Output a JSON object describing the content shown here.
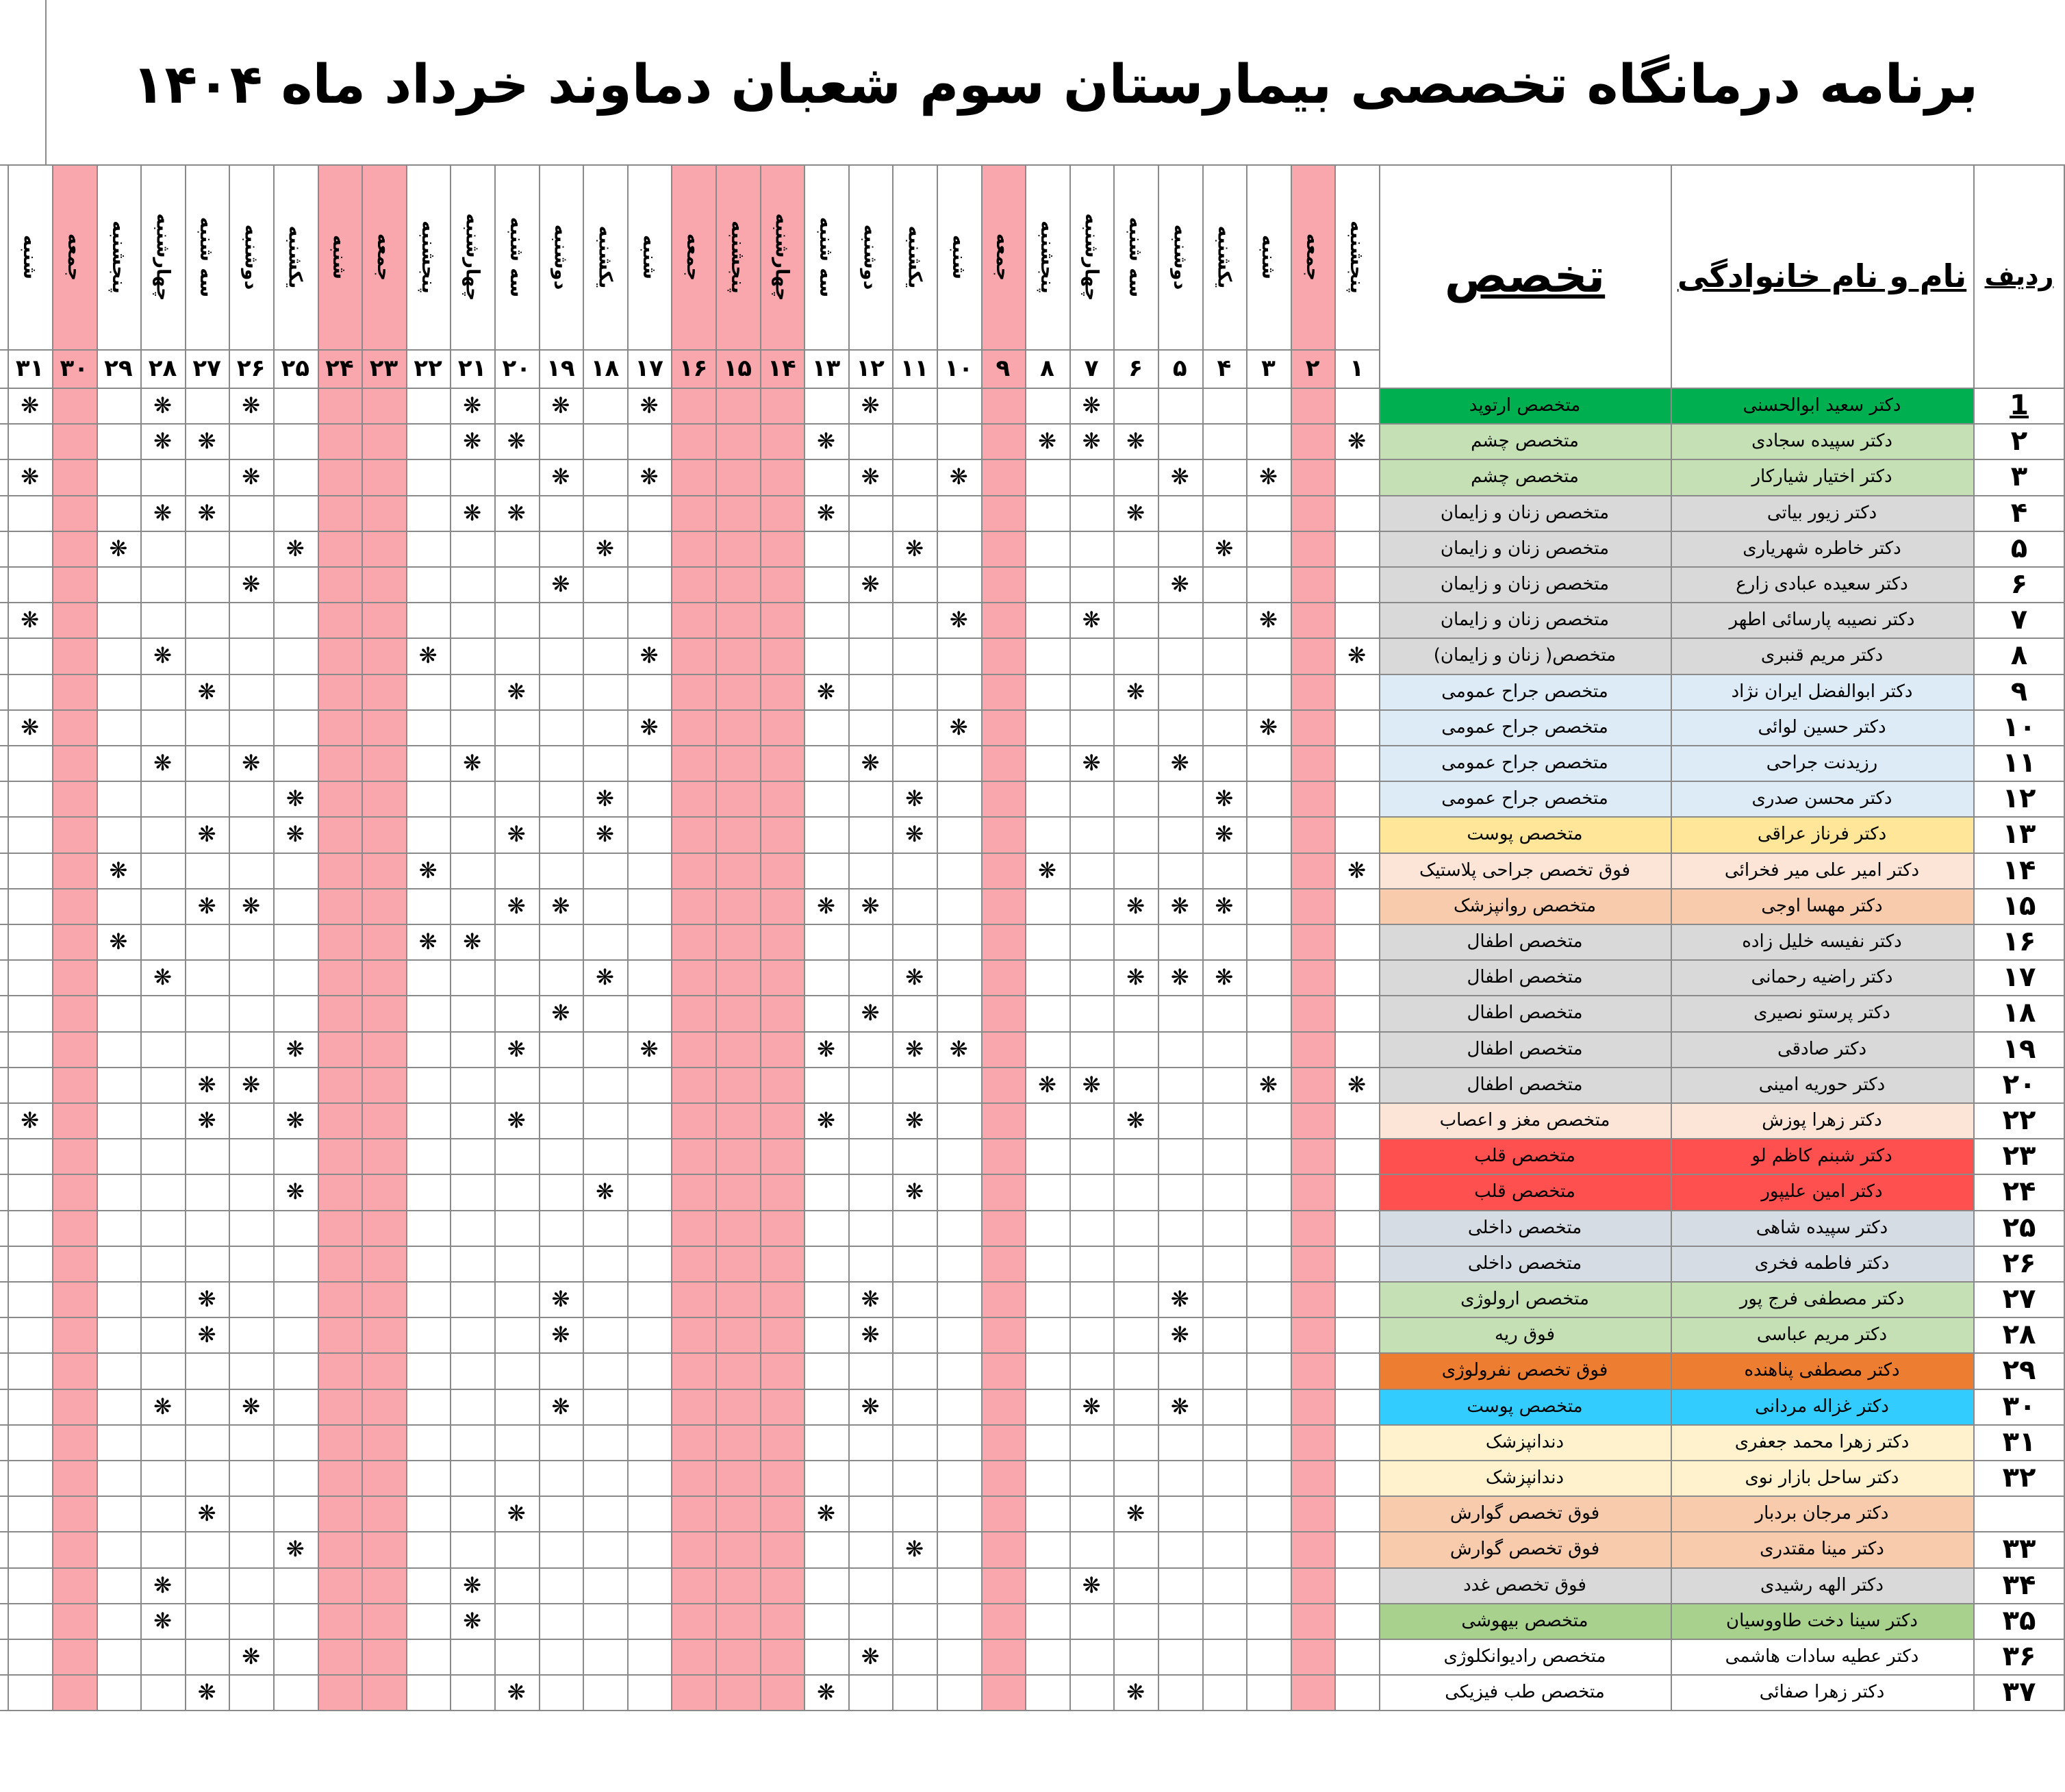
{
  "title": "برنامه درمانگاه تخصصی بیمارستان سوم شعبان دماوند خرداد ماه ۱۴۰۴",
  "headers": {
    "row_no": "ردیف",
    "name": "نام و نام خانوادگی",
    "specialty": "تخصص"
  },
  "days": [
    {
      "num": "۱",
      "name": "پنجشنبه",
      "holiday": false
    },
    {
      "num": "۲",
      "name": "جمعه",
      "holiday": true
    },
    {
      "num": "۳",
      "name": "شنبه",
      "holiday": false
    },
    {
      "num": "۴",
      "name": "یکشنبه",
      "holiday": false
    },
    {
      "num": "۵",
      "name": "دوشنبه",
      "holiday": false
    },
    {
      "num": "۶",
      "name": "سه شنبه",
      "holiday": false
    },
    {
      "num": "۷",
      "name": "چهارشنبه",
      "holiday": false
    },
    {
      "num": "۸",
      "name": "پنجشنبه",
      "holiday": false
    },
    {
      "num": "۹",
      "name": "جمعه",
      "holiday": true
    },
    {
      "num": "۱۰",
      "name": "شنبه",
      "holiday": false
    },
    {
      "num": "۱۱",
      "name": "یکشنبه",
      "holiday": false
    },
    {
      "num": "۱۲",
      "name": "دوشنبه",
      "holiday": false
    },
    {
      "num": "۱۳",
      "name": "سه شنبه",
      "holiday": false
    },
    {
      "num": "۱۴",
      "name": "چهارشنبه",
      "holiday": true
    },
    {
      "num": "۱۵",
      "name": "پنجشنبه",
      "holiday": true
    },
    {
      "num": "۱۶",
      "name": "جمعه",
      "holiday": true
    },
    {
      "num": "۱۷",
      "name": "شنبه",
      "holiday": false
    },
    {
      "num": "۱۸",
      "name": "یکشنبه",
      "holiday": false
    },
    {
      "num": "۱۹",
      "name": "دوشنبه",
      "holiday": false
    },
    {
      "num": "۲۰",
      "name": "سه شنبه",
      "holiday": false
    },
    {
      "num": "۲۱",
      "name": "چهارشنبه",
      "holiday": false
    },
    {
      "num": "۲۲",
      "name": "پنجشنبه",
      "holiday": false
    },
    {
      "num": "۲۳",
      "name": "جمعه",
      "holiday": true
    },
    {
      "num": "۲۴",
      "name": "شنبه",
      "holiday": true
    },
    {
      "num": "۲۵",
      "name": "یکشنبه",
      "holiday": false
    },
    {
      "num": "۲۶",
      "name": "دوشنبه",
      "holiday": false
    },
    {
      "num": "۲۷",
      "name": "سه شنبه",
      "holiday": false
    },
    {
      "num": "۲۸",
      "name": "چهارشنبه",
      "holiday": false
    },
    {
      "num": "۲۹",
      "name": "پنجشنبه",
      "holiday": false
    },
    {
      "num": "۳۰",
      "name": "جمعه",
      "holiday": true
    },
    {
      "num": "۳۱",
      "name": "شنبه",
      "holiday": false
    }
  ],
  "mark_symbol": "❋",
  "colors": {
    "holiday": "#f9a7ad",
    "grid": "#8a8a8a"
  },
  "rows": [
    {
      "no": "1",
      "name": "دکتر سعید ابوالحسنی",
      "specialty": "متخصص ارتوپد",
      "color": "#00b050",
      "days": [
        7,
        12,
        17,
        19,
        21,
        26,
        28,
        31
      ]
    },
    {
      "no": "۲",
      "name": "دکتر سپیده سجادی",
      "specialty": "متخصص چشم",
      "color": "#c5e0b4",
      "days": [
        1,
        6,
        7,
        8,
        13,
        20,
        21,
        27,
        28
      ]
    },
    {
      "no": "۳",
      "name": "دکتر اختیار شیارکار",
      "specialty": "متخصص چشم",
      "color": "#c5e0b4",
      "days": [
        3,
        5,
        10,
        12,
        17,
        19,
        26,
        31
      ]
    },
    {
      "no": "۴",
      "name": "دکتر زیور بیاتی",
      "specialty": "متخصص زنان و زایمان",
      "color": "#d9d9d9",
      "days": [
        6,
        13,
        20,
        21,
        27,
        28
      ]
    },
    {
      "no": "۵",
      "name": "دکتر خاطره شهریاری",
      "specialty": "متخصص زنان و زایمان",
      "color": "#d9d9d9",
      "days": [
        4,
        11,
        18,
        25,
        29
      ]
    },
    {
      "no": "۶",
      "name": "دکتر سعیده عبادی زارع",
      "specialty": "متخصص زنان و زایمان",
      "color": "#d9d9d9",
      "days": [
        5,
        12,
        19,
        26
      ]
    },
    {
      "no": "۷",
      "name": "دکتر نصیبه پارسائی اطهر",
      "specialty": "متخصص زنان و زایمان",
      "color": "#d9d9d9",
      "days": [
        3,
        7,
        10,
        31
      ]
    },
    {
      "no": "۸",
      "name": "دکتر مریم قنبری",
      "specialty": "متخصص( زنان و زایمان)",
      "color": "#d9d9d9",
      "days": [
        1,
        17,
        22,
        28
      ]
    },
    {
      "no": "۹",
      "name": "دکتر ابوالفضل ایران نژاد",
      "specialty": "متخصص جراح عمومی",
      "color": "#ddebf7",
      "days": [
        6,
        13,
        20,
        27
      ]
    },
    {
      "no": "۱۰",
      "name": "دکتر حسین لوائی",
      "specialty": "متخصص جراح عمومی",
      "color": "#ddebf7",
      "days": [
        3,
        10,
        17,
        31
      ]
    },
    {
      "no": "۱۱",
      "name": "رزیدنت جراحی",
      "specialty": "متخصص جراح عمومی",
      "color": "#ddebf7",
      "days": [
        5,
        7,
        12,
        21,
        26,
        28
      ]
    },
    {
      "no": "۱۲",
      "name": "دکتر محسن صدری",
      "specialty": "متخصص جراح عمومی",
      "color": "#ddebf7",
      "days": [
        4,
        11,
        18,
        25
      ]
    },
    {
      "no": "۱۳",
      "name": "دکتر فرناز عراقی",
      "specialty": "متخصص پوست",
      "color": "#ffe699",
      "days": [
        4,
        11,
        18,
        20,
        25,
        27
      ]
    },
    {
      "no": "۱۴",
      "name": "دکتر امیر علی میر فخرائی",
      "specialty": "فوق تخصص جراحی پلاستیک",
      "color": "#fce4d6",
      "days": [
        1,
        8,
        22,
        29
      ]
    },
    {
      "no": "۱۵",
      "name": "دکتر مهسا اوجی",
      "specialty": "متخصص روانپزشک",
      "color": "#f8cbad",
      "days": [
        4,
        5,
        6,
        12,
        13,
        19,
        20,
        26,
        27
      ]
    },
    {
      "no": "۱۶",
      "name": "دکتر نفیسه خلیل زاده",
      "specialty": "متخصص اطفال",
      "color": "#d9d9d9",
      "days": [
        21,
        22,
        29
      ]
    },
    {
      "no": "۱۷",
      "name": "دکتر راضیه رحمانی",
      "specialty": "متخصص اطفال",
      "color": "#d9d9d9",
      "days": [
        4,
        5,
        6,
        11,
        18,
        28
      ]
    },
    {
      "no": "۱۸",
      "name": "دکتر پرستو نصیری",
      "specialty": "متخصص اطفال",
      "color": "#d9d9d9",
      "days": [
        12,
        19
      ]
    },
    {
      "no": "۱۹",
      "name": "دکتر صادقی",
      "specialty": "متخصص اطفال",
      "color": "#d9d9d9",
      "days": [
        10,
        11,
        13,
        17,
        20,
        25
      ]
    },
    {
      "no": "۲۰",
      "name": "دکتر حوریه امینی",
      "specialty": "متخصص اطفال",
      "color": "#d9d9d9",
      "days": [
        1,
        3,
        7,
        8,
        26,
        27
      ]
    },
    {
      "no": "۲۲",
      "name": "دکتر زهرا پوزش",
      "specialty": "متخصص مغز و اعصاب",
      "color": "#fce4d6",
      "days": [
        6,
        11,
        13,
        20,
        25,
        27,
        31
      ]
    },
    {
      "no": "۲۳",
      "name": "دکتر شبنم کاظم لو",
      "specialty": "متخصص قلب",
      "color": "#ff5050",
      "days": []
    },
    {
      "no": "۲۴",
      "name": "دکتر امین علیپور",
      "specialty": "متخصص قلب",
      "color": "#ff5050",
      "days": [
        11,
        18,
        25
      ]
    },
    {
      "no": "۲۵",
      "name": "دکتر سپیده شاهی",
      "specialty": "متخصص داخلی",
      "color": "#d6dce4",
      "days": []
    },
    {
      "no": "۲۶",
      "name": "دکتر فاطمه فخری",
      "specialty": "متخصص داخلی",
      "color": "#d6dce4",
      "days": []
    },
    {
      "no": "۲۷",
      "name": "دکتر مصطفی فرج پور",
      "specialty": "متخصص ارولوژی",
      "color": "#c5e0b4",
      "days": [
        5,
        12,
        19,
        27
      ]
    },
    {
      "no": "۲۸",
      "name": "دکتر مریم عباسی",
      "specialty": "فوق ریه",
      "color": "#c5e0b4",
      "days": [
        5,
        12,
        19,
        27
      ]
    },
    {
      "no": "۲۹",
      "name": "دکتر مصطفی پناهنده",
      "specialty": "فوق تخصص نفرولوژی",
      "color": "#ed7d31",
      "days": []
    },
    {
      "no": "۳۰",
      "name": "دکتر غزاله مردانی",
      "specialty": "متخصص پوست",
      "color": "#33ccff",
      "days": [
        5,
        7,
        12,
        19,
        26,
        28
      ]
    },
    {
      "no": "۳۱",
      "name": "دکتر زهرا محمد جعفری",
      "specialty": "دندانپزشک",
      "color": "#fff2cc",
      "days": []
    },
    {
      "no": "۳۲",
      "name": "دکتر ساحل بازار نوی",
      "specialty": "دندانپزشک",
      "color": "#fff2cc",
      "days": []
    },
    {
      "no": "",
      "name": "دکتر مرجان بردبار",
      "specialty": "فوق تخصص گوارش",
      "color": "#f8cbad",
      "days": [
        6,
        13,
        20,
        27
      ]
    },
    {
      "no": "۳۳",
      "name": "دکتر مینا مقتدری",
      "specialty": "فوق تخصص گوارش",
      "color": "#f8cbad",
      "days": [
        11,
        25
      ]
    },
    {
      "no": "۳۴",
      "name": "دکتر الهه رشیدی",
      "specialty": "فوق تخصص غدد",
      "color": "#d9d9d9",
      "days": [
        7,
        21,
        28
      ]
    },
    {
      "no": "۳۵",
      "name": "دکتر سینا دخت طاووسیان",
      "specialty": "متخصص بیهوشی",
      "color": "#a9d18e",
      "days": [
        21,
        28
      ]
    },
    {
      "no": "۳۶",
      "name": "دکتر عطیه سادات هاشمی",
      "specialty": "متخصص رادیوانکلوژی",
      "color": "#ffffff",
      "days": [
        12,
        26
      ]
    },
    {
      "no": "۳۷",
      "name": "دکتر زهرا صفائی",
      "specialty": "متخصص طب فیزیکی",
      "color": "#ffffff",
      "days": [
        6,
        13,
        20,
        27
      ]
    }
  ]
}
